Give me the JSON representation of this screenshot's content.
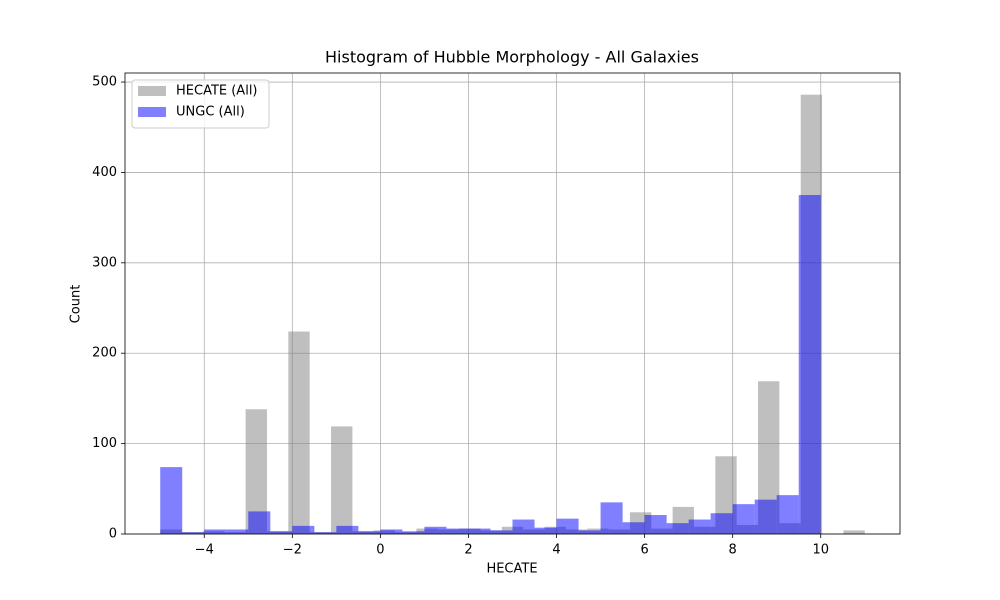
{
  "chart_data": {
    "type": "histogram",
    "title": "Histogram of Hubble Morphology - All Galaxies",
    "xlabel": "HECATE",
    "ylabel": "Count",
    "xlim": [
      -5.8,
      11.8
    ],
    "ylim": [
      0,
      510
    ],
    "xticks": [
      {
        "value": -4,
        "label": "−4"
      },
      {
        "value": -2,
        "label": "−2"
      },
      0,
      2,
      4,
      6,
      8,
      10
    ],
    "yticks": [
      0,
      100,
      200,
      300,
      400,
      500
    ],
    "grid": true,
    "legend": "upper left",
    "alpha": 0.5,
    "series": [
      {
        "name": "HECATE (All)",
        "color": "#808080",
        "bins": [
          -5,
          -4.515,
          -4.03,
          -3.545,
          -3.061,
          -2.576,
          -2.091,
          -1.606,
          -1.121,
          -0.636,
          -0.152,
          0.333,
          0.818,
          1.303,
          1.788,
          2.273,
          2.758,
          3.242,
          3.727,
          4.212,
          4.697,
          5.182,
          5.667,
          6.152,
          6.636,
          7.121,
          7.606,
          8.091,
          8.576,
          9.061,
          9.545,
          10.03,
          10.515,
          11
        ],
        "values": [
          5,
          2,
          3,
          2,
          138,
          3,
          224,
          2,
          119,
          3,
          4,
          2,
          6,
          5,
          6,
          4,
          8,
          5,
          8,
          5,
          6,
          5,
          24,
          6,
          30,
          8,
          86,
          10,
          169,
          12,
          486,
          0,
          4
        ]
      },
      {
        "name": "UNGC (All)",
        "color": "#0000ff",
        "bins": [
          -5,
          -4.5,
          -4,
          -3.5,
          -3,
          -2.5,
          -2,
          -1.5,
          -1,
          -0.5,
          0,
          0.5,
          1,
          1.5,
          2,
          2.5,
          3,
          3.5,
          4,
          4.5,
          5,
          5.5,
          6,
          6.5,
          7,
          7.5,
          8,
          8.5,
          9,
          9.5,
          10
        ],
        "values": [
          74,
          2,
          5,
          5,
          25,
          3,
          9,
          2,
          9,
          3,
          5,
          3,
          8,
          6,
          6,
          4,
          16,
          7,
          17,
          4,
          35,
          13,
          21,
          12,
          16,
          23,
          33,
          38,
          43,
          375
        ]
      }
    ]
  }
}
